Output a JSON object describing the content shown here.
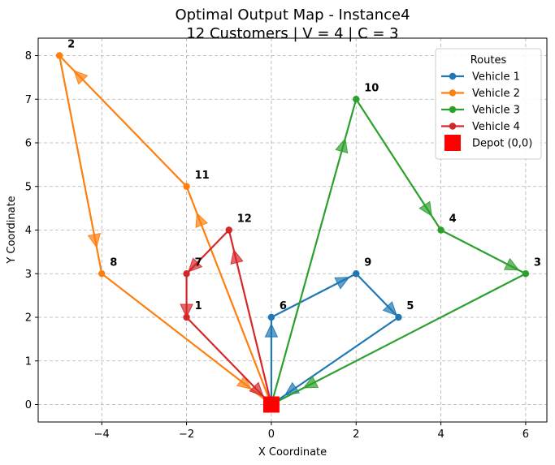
{
  "chart_data": {
    "type": "line",
    "title": [
      "Optimal Output Map - Instance4",
      "12 Customers | V = 4 | C = 3"
    ],
    "xlabel": "X Coordinate",
    "ylabel": "Y Coordinate",
    "xlim": [
      -5.5,
      6.5
    ],
    "ylim": [
      -0.4,
      8.4
    ],
    "xticks": [
      -4,
      -2,
      0,
      2,
      4,
      6
    ],
    "yticks": [
      0,
      1,
      2,
      3,
      4,
      5,
      6,
      7,
      8
    ],
    "grid": true,
    "legend": {
      "title": "Routes",
      "position": "top-right",
      "entries": [
        "Vehicle 1",
        "Vehicle 2",
        "Vehicle 3",
        "Vehicle 4",
        "Depot (0,0)"
      ]
    },
    "depot": {
      "name": "Depot (0,0)",
      "x": 0,
      "y": 0,
      "color": "#ff0000"
    },
    "customers": [
      {
        "id": "1",
        "x": -2,
        "y": 2
      },
      {
        "id": "2",
        "x": -5,
        "y": 8
      },
      {
        "id": "3",
        "x": 6,
        "y": 3
      },
      {
        "id": "4",
        "x": 4,
        "y": 4
      },
      {
        "id": "5",
        "x": 3,
        "y": 2
      },
      {
        "id": "6",
        "x": 0,
        "y": 2
      },
      {
        "id": "7",
        "x": -2,
        "y": 3
      },
      {
        "id": "8",
        "x": -4,
        "y": 3
      },
      {
        "id": "9",
        "x": 2,
        "y": 3
      },
      {
        "id": "10",
        "x": 2,
        "y": 7
      },
      {
        "id": "11",
        "x": -2,
        "y": 5
      },
      {
        "id": "12",
        "x": -1,
        "y": 4
      }
    ],
    "series": [
      {
        "name": "Vehicle 1",
        "color": "#1f77b4",
        "route": [
          [
            0,
            0
          ],
          [
            0,
            2
          ],
          [
            2,
            3
          ],
          [
            3,
            2
          ],
          [
            0,
            0
          ]
        ]
      },
      {
        "name": "Vehicle 2",
        "color": "#ff7f0e",
        "route": [
          [
            0,
            0
          ],
          [
            -2,
            5
          ],
          [
            -5,
            8
          ],
          [
            -4,
            3
          ],
          [
            0,
            0
          ]
        ]
      },
      {
        "name": "Vehicle 3",
        "color": "#2ca02c",
        "route": [
          [
            0,
            0
          ],
          [
            2,
            7
          ],
          [
            4,
            4
          ],
          [
            6,
            3
          ],
          [
            0,
            0
          ]
        ]
      },
      {
        "name": "Vehicle 4",
        "color": "#d62728",
        "route": [
          [
            0,
            0
          ],
          [
            -1,
            4
          ],
          [
            -2,
            3
          ],
          [
            -2,
            2
          ],
          [
            0,
            0
          ]
        ]
      }
    ]
  }
}
